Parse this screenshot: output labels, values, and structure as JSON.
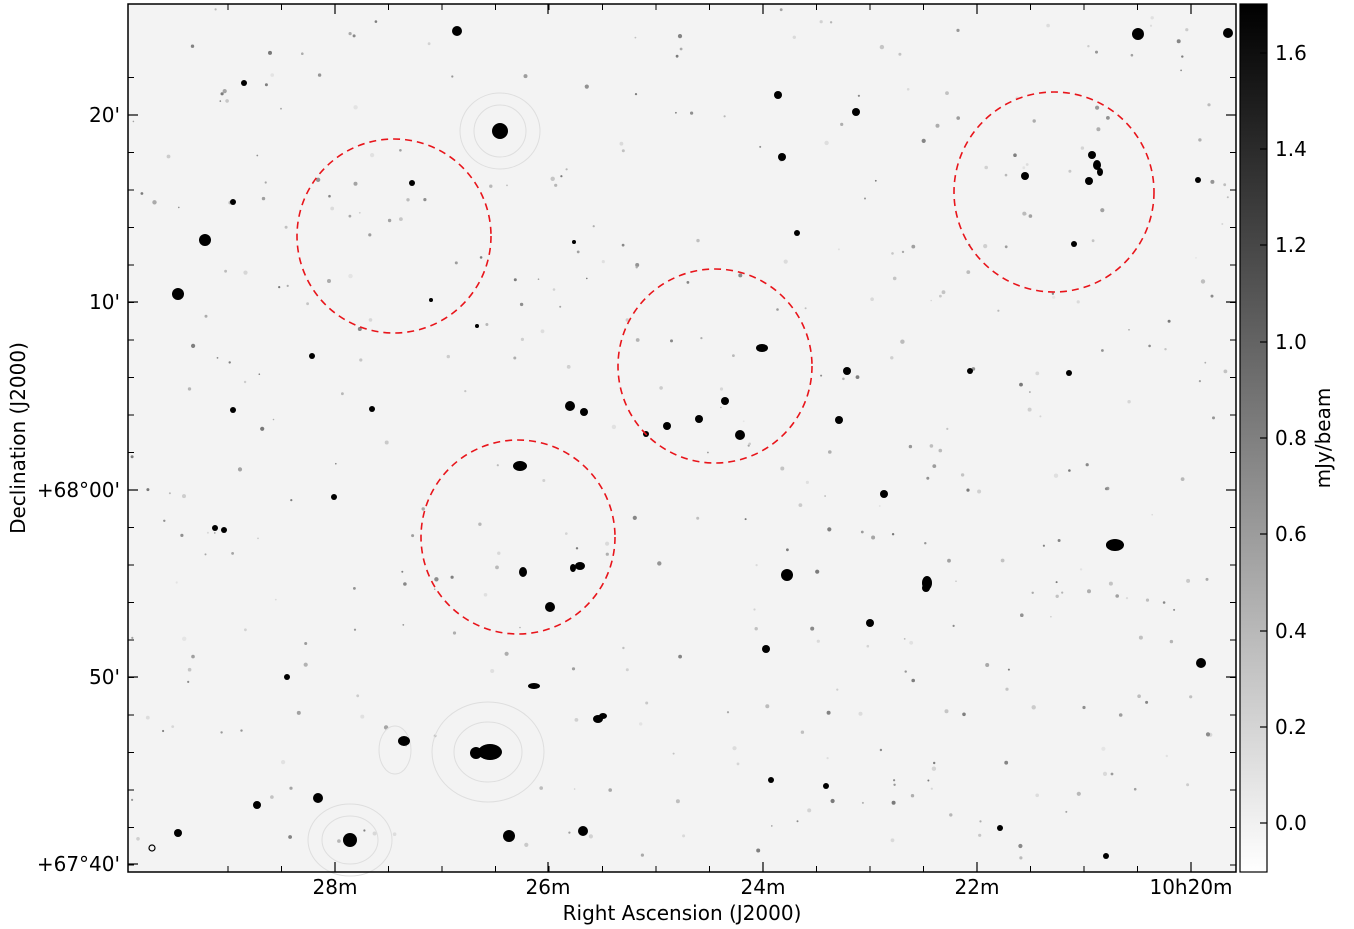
{
  "axes": {
    "xlabel": "Right Ascension (J2000)",
    "ylabel": "Declination (J2000)",
    "x_ticks": [
      "28m",
      "26m",
      "24m",
      "22m",
      "10h20m"
    ],
    "y_ticks": [
      "20'",
      "10'",
      "+68°00'",
      "50'",
      "+67°40'"
    ]
  },
  "colorbar": {
    "label": "mJy/beam",
    "ticks": [
      "1.6",
      "1.4",
      "1.2",
      "1.0",
      "0.8",
      "0.6",
      "0.4",
      "0.2",
      "0.0"
    ],
    "range": [
      -0.1,
      1.7
    ],
    "colormap": "gray_r"
  },
  "colors": {
    "background": "#f3f3f3",
    "source": "#000000",
    "circle": "#e8141a",
    "frame": "#000000"
  },
  "regions": [
    {
      "ra": "10h27m25s",
      "dec": "+68°13.5'",
      "radius_arcmin": 5.2
    },
    {
      "ra": "10h24m25s",
      "dec": "+68°06.5'",
      "radius_arcmin": 5.2
    },
    {
      "ra": "10h26m15s",
      "dec": "+67°57.5'",
      "radius_arcmin": 5.2
    },
    {
      "ra": "10h21m15s",
      "dec": "+68°16.0'",
      "radius_arcmin": 5.4
    }
  ]
}
